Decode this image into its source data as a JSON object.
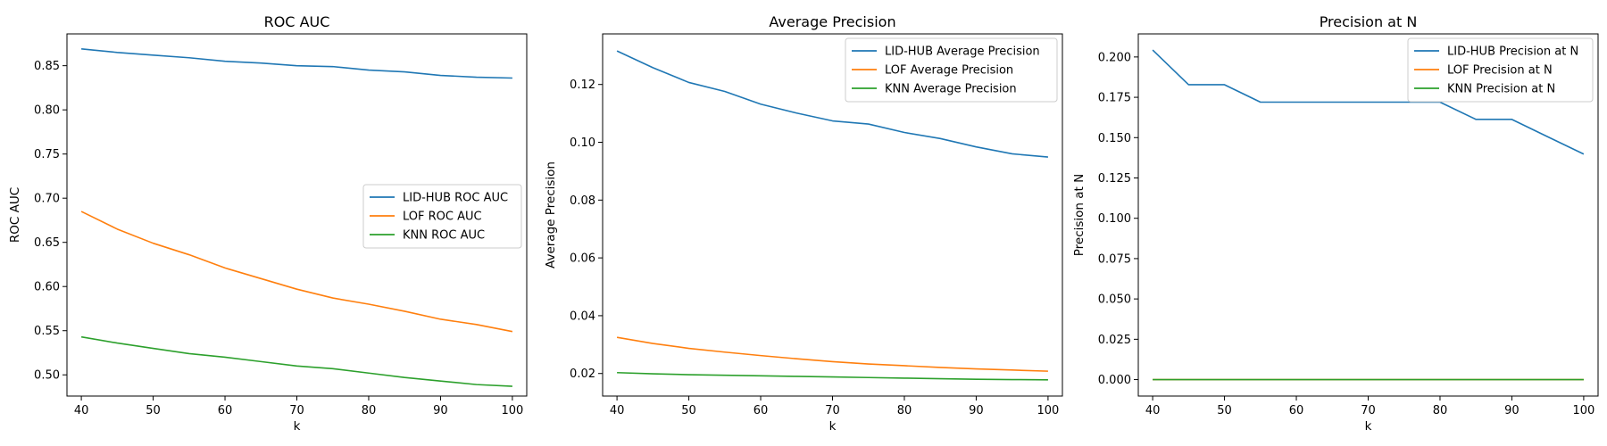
{
  "chart_data": [
    {
      "type": "line",
      "title": "ROC AUC",
      "xlabel": "k",
      "ylabel": "ROC AUC",
      "x": [
        40,
        45,
        50,
        55,
        60,
        65,
        70,
        75,
        80,
        85,
        90,
        95,
        100
      ],
      "xlim": [
        38,
        102
      ],
      "ylim": [
        0.476,
        0.886
      ],
      "xticks": [
        40,
        50,
        60,
        70,
        80,
        90,
        100
      ],
      "yticks": [
        0.5,
        0.55,
        0.6,
        0.65,
        0.7,
        0.75,
        0.8,
        0.85
      ],
      "ytick_labels": [
        "0.50",
        "0.55",
        "0.60",
        "0.65",
        "0.70",
        "0.75",
        "0.80",
        "0.85"
      ],
      "legend_position": "center-right",
      "grid": false,
      "series": [
        {
          "name": "LID-HUB ROC AUC",
          "color": "#1f77b4",
          "values": [
            0.869,
            0.865,
            0.862,
            0.859,
            0.855,
            0.853,
            0.85,
            0.849,
            0.845,
            0.843,
            0.839,
            0.837,
            0.836
          ]
        },
        {
          "name": "LOF ROC AUC",
          "color": "#ff7f0e",
          "values": [
            0.685,
            0.665,
            0.649,
            0.636,
            0.621,
            0.609,
            0.597,
            0.587,
            0.58,
            0.572,
            0.563,
            0.557,
            0.549
          ]
        },
        {
          "name": "KNN ROC AUC",
          "color": "#2ca02c",
          "values": [
            0.543,
            0.536,
            0.53,
            0.524,
            0.52,
            0.515,
            0.51,
            0.507,
            0.502,
            0.497,
            0.493,
            0.489,
            0.487
          ]
        }
      ]
    },
    {
      "type": "line",
      "title": "Average Precision",
      "xlabel": "k",
      "ylabel": "Average Precision",
      "x": [
        40,
        45,
        50,
        55,
        60,
        65,
        70,
        75,
        80,
        85,
        90,
        95,
        100
      ],
      "xlim": [
        38,
        102
      ],
      "ylim": [
        0.0122,
        0.1375
      ],
      "xticks": [
        40,
        50,
        60,
        70,
        80,
        90,
        100
      ],
      "yticks": [
        0.02,
        0.04,
        0.06,
        0.08,
        0.1,
        0.12
      ],
      "ytick_labels": [
        "0.02",
        "0.04",
        "0.06",
        "0.08",
        "0.10",
        "0.12"
      ],
      "legend_position": "top-right",
      "grid": false,
      "series": [
        {
          "name": "LID-HUB Average Precision",
          "color": "#1f77b4",
          "values": [
            0.1316,
            0.1258,
            0.1207,
            0.1176,
            0.1132,
            0.1101,
            0.1074,
            0.1063,
            0.1034,
            0.1013,
            0.0984,
            0.096,
            0.0949
          ]
        },
        {
          "name": "LOF Average Precision",
          "color": "#ff7f0e",
          "values": [
            0.0325,
            0.0304,
            0.0287,
            0.0274,
            0.0262,
            0.0251,
            0.0241,
            0.0233,
            0.0227,
            0.0221,
            0.0216,
            0.0212,
            0.0208
          ]
        },
        {
          "name": "KNN Average Precision",
          "color": "#2ca02c",
          "values": [
            0.0203,
            0.0199,
            0.0196,
            0.0194,
            0.0192,
            0.019,
            0.0188,
            0.0186,
            0.0184,
            0.0182,
            0.018,
            0.0179,
            0.0178
          ]
        }
      ]
    },
    {
      "type": "line",
      "title": "Precision at N",
      "xlabel": "k",
      "ylabel": "Precision at N",
      "x": [
        40,
        45,
        50,
        55,
        60,
        65,
        70,
        75,
        80,
        85,
        90,
        95,
        100
      ],
      "xlim": [
        38,
        102
      ],
      "ylim": [
        -0.0102,
        0.2143
      ],
      "xticks": [
        40,
        50,
        60,
        70,
        80,
        90,
        100
      ],
      "yticks": [
        0.0,
        0.025,
        0.05,
        0.075,
        0.1,
        0.125,
        0.15,
        0.175,
        0.2
      ],
      "ytick_labels": [
        "0.000",
        "0.025",
        "0.050",
        "0.075",
        "0.100",
        "0.125",
        "0.150",
        "0.175",
        "0.200"
      ],
      "legend_position": "top-right",
      "grid": false,
      "series": [
        {
          "name": "LID-HUB Precision at N",
          "color": "#1f77b4",
          "values": [
            0.2043,
            0.1828,
            0.1828,
            0.172,
            0.172,
            0.172,
            0.172,
            0.172,
            0.172,
            0.1613,
            0.1613,
            0.1505,
            0.1398
          ]
        },
        {
          "name": "LOF Precision at N",
          "color": "#ff7f0e",
          "values": [
            0,
            0,
            0,
            0,
            0,
            0,
            0,
            0,
            0,
            0,
            0,
            0,
            0
          ]
        },
        {
          "name": "KNN Precision at N",
          "color": "#2ca02c",
          "values": [
            0,
            0,
            0,
            0,
            0,
            0,
            0,
            0,
            0,
            0,
            0,
            0,
            0
          ]
        }
      ]
    }
  ]
}
